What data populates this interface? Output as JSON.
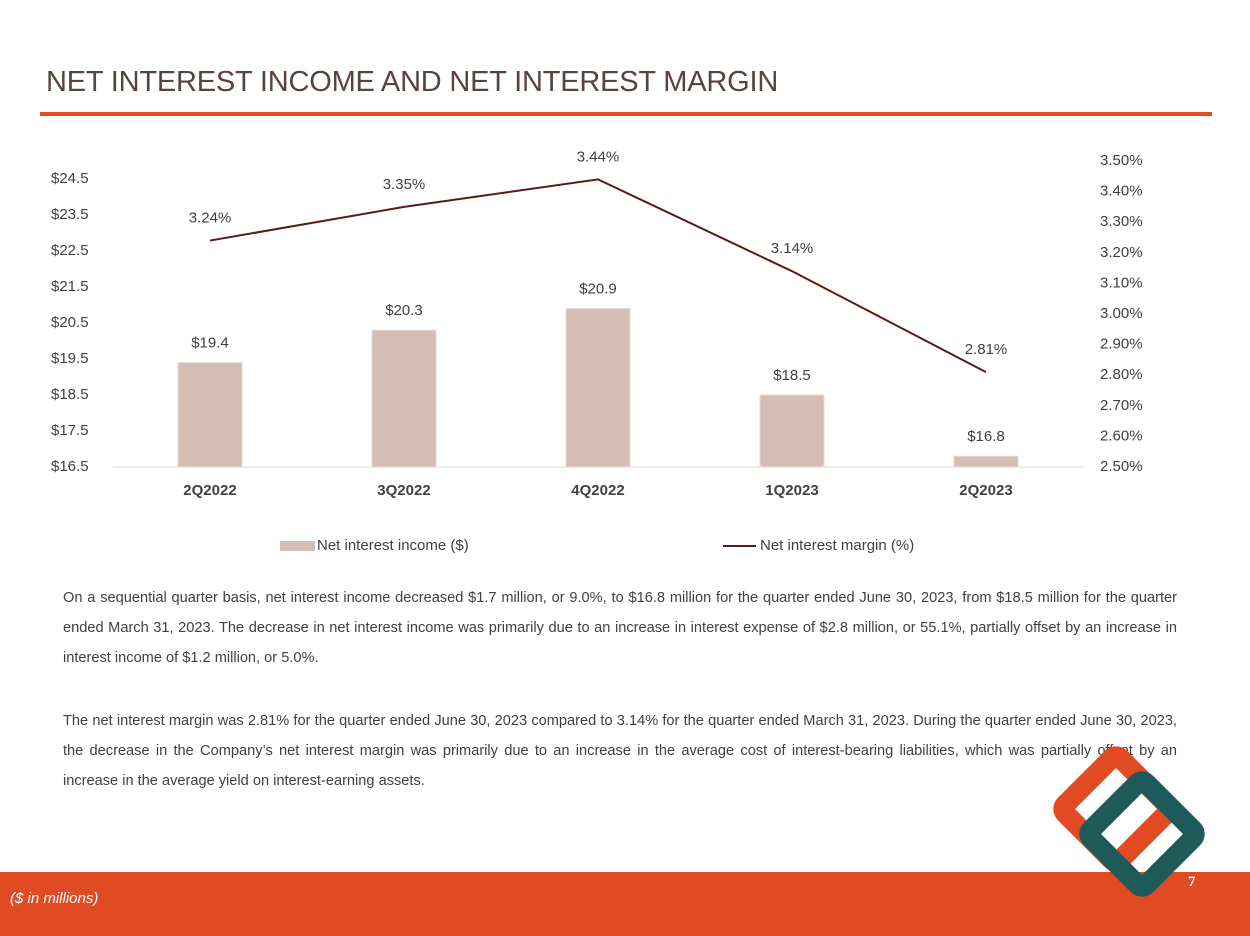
{
  "header": {
    "title": "NET INTEREST INCOME AND NET INTEREST MARGIN"
  },
  "chart_data": {
    "type": "combo",
    "categories": [
      "2Q2022",
      "3Q2022",
      "4Q2022",
      "1Q2023",
      "2Q2023"
    ],
    "series": [
      {
        "name": "Net interest income ($)",
        "type": "bar",
        "color": "#d6bdb3",
        "values": [
          19.4,
          20.3,
          20.9,
          18.5,
          16.8
        ],
        "value_labels": [
          "$19.4",
          "$20.3",
          "$20.9",
          "$18.5",
          "$16.8"
        ]
      },
      {
        "name": "Net interest margin (%)",
        "type": "line",
        "axis": "y2",
        "color": "#5c1a12",
        "values": [
          3.24,
          3.35,
          3.44,
          3.14,
          2.81
        ],
        "value_labels": [
          "3.24%",
          "3.35%",
          "3.44%",
          "3.14%",
          "2.81%"
        ]
      }
    ],
    "ylim": [
      16.5,
      25
    ],
    "yticks": [
      {
        "value": 16.5,
        "label": "$16.5"
      },
      {
        "value": 17.5,
        "label": "$17.5"
      },
      {
        "value": 18.5,
        "label": "$18.5"
      },
      {
        "value": 19.5,
        "label": "$19.5"
      },
      {
        "value": 20.5,
        "label": "$20.5"
      },
      {
        "value": 21.5,
        "label": "$21.5"
      },
      {
        "value": 22.5,
        "label": "$22.5"
      },
      {
        "value": 23.5,
        "label": "$23.5"
      },
      {
        "value": 24.5,
        "label": "$24.5"
      }
    ],
    "y2lim": [
      2.5,
      3.5
    ],
    "y2ticks": [
      {
        "value": 2.5,
        "label": "2.50%"
      },
      {
        "value": 2.6,
        "label": "2.60%"
      },
      {
        "value": 2.7,
        "label": "2.70%"
      },
      {
        "value": 2.8,
        "label": "2.80%"
      },
      {
        "value": 2.9,
        "label": "2.90%"
      },
      {
        "value": 3.0,
        "label": "3.00%"
      },
      {
        "value": 3.1,
        "label": "3.10%"
      },
      {
        "value": 3.2,
        "label": "3.20%"
      },
      {
        "value": 3.3,
        "label": "3.30%"
      },
      {
        "value": 3.4,
        "label": "3.40%"
      },
      {
        "value": 3.5,
        "label": "3.50%"
      }
    ],
    "grid": false,
    "legend": "bottom"
  },
  "body": {
    "paragraphs": [
      "On a sequential quarter basis, net interest income decreased $1.7 million, or 9.0%, to $16.8 million for the quarter ended June 30, 2023, from $18.5 million for the quarter ended March 31, 2023. The decrease in net interest income was primarily due to an increase in interest expense of $2.8 million, or 55.1%, partially offset by an increase in interest income of $1.2 million, or 5.0%.",
      "The net interest margin was 2.81% for the quarter ended June 30, 2023 compared to 3.14% for the quarter ended March 31, 2023. During the quarter ended June 30, 2023, the decrease in the Company’s net interest margin was primarily due to an increase in the average cost of interest-bearing liabilities, which was partially offset by an increase in the average yield on interest-earning assets."
    ]
  },
  "footer": {
    "note": "($ in millions)",
    "page_number": "7"
  }
}
